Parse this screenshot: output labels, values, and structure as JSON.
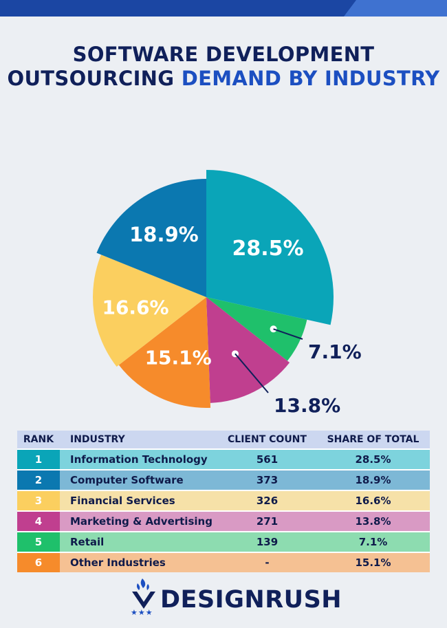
{
  "title": {
    "line1": "SOFTWARE DEVELOPMENT",
    "line2_plain": "OUTSOURCING ",
    "line2_highlight": "DEMAND BY INDUSTRY"
  },
  "chart_data": {
    "type": "pie",
    "title": "SOFTWARE DEVELOPMENT OUTSOURCING DEMAND BY INDUSTRY",
    "categories": [
      "Information Technology",
      "Retail",
      "Marketing & Advertising",
      "Other Industries",
      "Financial Services",
      "Computer Software"
    ],
    "values": [
      28.5,
      7.1,
      13.8,
      15.1,
      16.6,
      18.9
    ],
    "labels": [
      "28.5%",
      "7.1%",
      "13.8%",
      "15.1%",
      "16.6%",
      "18.9%"
    ],
    "colors": [
      "#0aa5b8",
      "#1fc06b",
      "#c03f8f",
      "#f68b2b",
      "#fbcf5f",
      "#0b78b0"
    ],
    "radius_rank": [
      1,
      6,
      5,
      4,
      3,
      2
    ]
  },
  "table": {
    "headers": [
      "RANK",
      "INDUSTRY",
      "CLIENT COUNT",
      "SHARE OF TOTAL"
    ],
    "rows": [
      {
        "rank": "1",
        "industry": "Information Technology",
        "count": "561",
        "share": "28.5%",
        "dark": "#0aa5b8",
        "light": "#7dd3dd"
      },
      {
        "rank": "2",
        "industry": "Computer Software",
        "count": "373",
        "share": "18.9%",
        "dark": "#0b78b0",
        "light": "#7db8d6"
      },
      {
        "rank": "3",
        "industry": "Financial Services",
        "count": "326",
        "share": "16.6%",
        "dark": "#fbcf5f",
        "light": "#f6e1a8"
      },
      {
        "rank": "4",
        "industry": "Marketing & Advertising",
        "count": "271",
        "share": "13.8%",
        "dark": "#c03f8f",
        "light": "#d99ac4"
      },
      {
        "rank": "5",
        "industry": "Retail",
        "count": "139",
        "share": "7.1%",
        "dark": "#1fc06b",
        "light": "#8ddcb0"
      },
      {
        "rank": "6",
        "industry": "Other Industries",
        "count": "-",
        "share": "15.1%",
        "dark": "#f68b2b",
        "light": "#f5c193"
      }
    ]
  },
  "brand": {
    "name": "DESIGNRUSH",
    "stars": "★★★"
  }
}
